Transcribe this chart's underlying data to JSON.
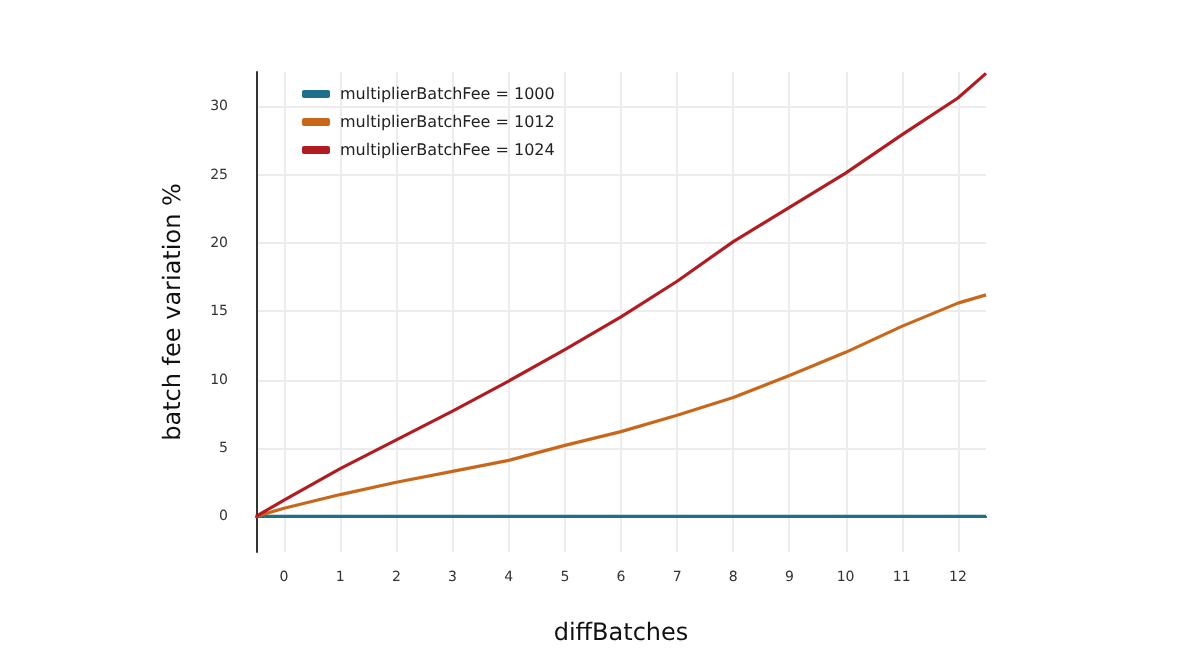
{
  "chart_data": {
    "type": "line",
    "xlabel": "diffBatches",
    "ylabel": "batch fee variation %",
    "x": [
      -0.5,
      0,
      1,
      2,
      3,
      4,
      5,
      6,
      7,
      8,
      9,
      10,
      11,
      12,
      12.5
    ],
    "series": [
      {
        "name": "multiplierBatchFee = 1000",
        "color": "#1f6e8c",
        "values": [
          0,
          0,
          0,
          0,
          0,
          0,
          0,
          0,
          0,
          0,
          0,
          0,
          0,
          0,
          0
        ]
      },
      {
        "name": "multiplierBatchFee = 1012",
        "color": "#c8671a",
        "values": [
          0,
          0.6,
          1.6,
          2.5,
          3.3,
          4.1,
          5.2,
          6.2,
          7.4,
          8.7,
          10.3,
          12.0,
          13.9,
          15.6,
          16.2
        ]
      },
      {
        "name": "multiplierBatchFee = 1024",
        "color": "#b01c22",
        "values": [
          0,
          1.2,
          3.5,
          5.6,
          7.7,
          9.9,
          12.2,
          14.6,
          17.2,
          20.1,
          22.6,
          25.1,
          27.9,
          30.6,
          32.4
        ]
      }
    ],
    "xlim": [
      -0.5,
      12.5
    ],
    "xticks": [
      0,
      1,
      2,
      3,
      4,
      5,
      6,
      7,
      8,
      9,
      10,
      11,
      12
    ],
    "ylim": [
      -2.6,
      32.5
    ],
    "yticks": [
      0,
      5,
      10,
      15,
      20,
      25,
      30
    ],
    "grid": true,
    "legend": "top left",
    "marker": "none",
    "line_style": "solid"
  }
}
